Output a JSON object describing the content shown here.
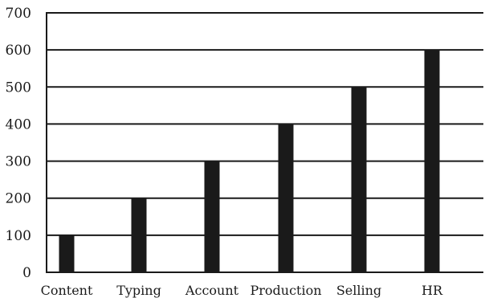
{
  "chart_data": {
    "type": "bar",
    "categories": [
      "Content",
      "Typing",
      "Account",
      "Production",
      "Selling",
      "HR"
    ],
    "values": [
      100,
      200,
      300,
      400,
      500,
      600
    ],
    "title": "",
    "xlabel": "",
    "ylabel": "",
    "ylim": [
      0,
      700
    ],
    "yticks": [
      0,
      100,
      200,
      300,
      400,
      500,
      600,
      700
    ],
    "grid": true,
    "bar_color": "#1a1a1a",
    "grid_color": "#1a1a1a"
  }
}
